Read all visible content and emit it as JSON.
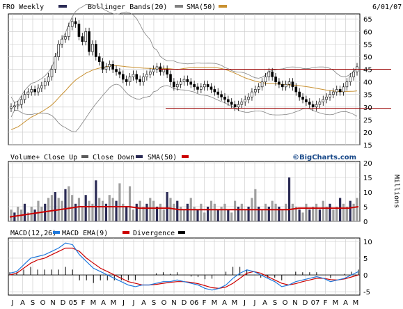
{
  "header": {
    "date": "6/01/07"
  },
  "price_legend": {
    "symbol": "FRO Weekly",
    "bb_label": "Bollinger Bands(20)",
    "sma_label": "SMA(50)"
  },
  "volume_legend": {
    "title": "Volume+",
    "close_up": "Close Up",
    "close_down": "Close Down",
    "sma_label": "SMA(50)",
    "watermark": "©BigCharts.com",
    "units": "Millions"
  },
  "macd_legend": {
    "title": "MACD(12,26)",
    "ema_label": "MACD EMA(9)",
    "div_label": "Divergence"
  },
  "colors": {
    "up": "#5a5a5a",
    "down": "#2b2b55",
    "bands": "#808080",
    "sma": "#c89030",
    "vol_sma": "#cc0000",
    "macd": "#1e78dc",
    "ema": "#cc0000",
    "div": "#000000",
    "grid": "#c8c8c8",
    "support": "#990000"
  },
  "chart_data": [
    {
      "type": "candlestick",
      "title": "FRO Weekly",
      "y_ticks": [
        15,
        20,
        25,
        30,
        35,
        40,
        45,
        50,
        55,
        60,
        65
      ],
      "ylim": [
        15,
        67
      ],
      "overlays": [
        "Bollinger Bands(20)",
        "SMA(50)"
      ],
      "horizontal_lines": [
        45,
        29.5
      ],
      "weekly_closes": [
        30,
        30.5,
        31,
        33,
        35,
        36,
        37,
        36,
        37.5,
        38.5,
        40,
        42,
        45,
        50,
        55,
        57,
        58,
        62,
        64,
        63,
        58,
        56,
        60,
        52,
        55,
        50,
        48,
        45,
        46,
        47,
        45,
        44,
        43,
        41,
        40,
        42,
        43,
        41,
        40,
        42,
        43,
        44,
        45,
        46,
        44,
        45,
        43,
        40,
        38,
        39,
        40,
        41,
        40,
        39,
        38,
        37,
        38,
        39,
        38,
        37,
        36,
        35,
        34,
        33,
        32,
        31,
        30,
        31,
        32,
        33,
        34,
        36,
        37,
        38,
        40,
        42,
        44,
        42,
        40,
        39,
        38,
        39,
        40,
        38,
        36,
        34,
        33,
        32,
        31,
        30,
        31,
        32,
        33,
        34,
        35,
        36,
        37,
        36,
        38,
        40,
        42,
        44,
        46
      ]
    },
    {
      "type": "bar",
      "title": "Volume+",
      "series": [
        {
          "name": "Close Up",
          "values": [
            4,
            3,
            5,
            4,
            6,
            3,
            5,
            4,
            7,
            5,
            6,
            8,
            9,
            10,
            8,
            7,
            11,
            12,
            9,
            6,
            8,
            5,
            9,
            7,
            6,
            14,
            8,
            7,
            6,
            9,
            8,
            7,
            13,
            6,
            5,
            12,
            4,
            6,
            7,
            5,
            6,
            8,
            7,
            5,
            6,
            4,
            10,
            8,
            6,
            7,
            5,
            4,
            6,
            8,
            5,
            4,
            6,
            3,
            5,
            7,
            6,
            4,
            5,
            6,
            4,
            3,
            7,
            5,
            6,
            4,
            5,
            8,
            11,
            5,
            4,
            6,
            5,
            7,
            6,
            5,
            4,
            6,
            15,
            6,
            5,
            4,
            3,
            6,
            4,
            5,
            6,
            4,
            7,
            5,
            6,
            4,
            5,
            8,
            6,
            5,
            7,
            6,
            8
          ]
        },
        {
          "name": "SMA(50)",
          "values": [
            1.5,
            2,
            2.5,
            3,
            3.5,
            4,
            4.5,
            5,
            5,
            5,
            5,
            5,
            5,
            4.5,
            4.5,
            4.5,
            4.5,
            4,
            4,
            4,
            4,
            4,
            4,
            4,
            4,
            4,
            4,
            4,
            4,
            4.5,
            4.5,
            4.5,
            4.5,
            4.5,
            4.5,
            5
          ]
        }
      ],
      "y_ticks": [
        0,
        5,
        10,
        15,
        20
      ],
      "ylim": [
        0,
        20
      ],
      "ylabel": "Millions"
    },
    {
      "type": "line",
      "title": "MACD(12,26)",
      "series": [
        {
          "name": "MACD(12,26)",
          "values": [
            0.5,
            1,
            3,
            5,
            5.5,
            6,
            7,
            8,
            9.5,
            9,
            6,
            4,
            2,
            1,
            0,
            -1,
            -2,
            -3,
            -3.5,
            -3,
            -3,
            -2.5,
            -2,
            -2,
            -1.5,
            -2,
            -2.5,
            -3,
            -4,
            -4.5,
            -4,
            -3,
            -1,
            0.5,
            1.5,
            1,
            0,
            -1,
            -2,
            -3.5,
            -3,
            -2,
            -1.5,
            -1,
            -0.5,
            -1,
            -2,
            -1.5,
            -1,
            0,
            1
          ]
        },
        {
          "name": "MACD EMA(9)",
          "values": [
            0,
            0.5,
            2,
            3.5,
            4.5,
            5,
            6,
            7,
            8,
            8,
            7,
            5,
            3.5,
            2,
            1,
            0,
            -1,
            -2,
            -2.5,
            -3,
            -3,
            -2.8,
            -2.5,
            -2.2,
            -2,
            -2,
            -2.2,
            -2.6,
            -3.2,
            -3.8,
            -4,
            -3.6,
            -2.5,
            -1,
            0.5,
            1,
            0.5,
            -0.5,
            -1.5,
            -2.5,
            -3,
            -2.6,
            -2,
            -1.5,
            -1,
            -1,
            -1.4,
            -1.5,
            -1.2,
            -0.6,
            0
          ]
        }
      ],
      "y_ticks": [
        -5,
        0,
        5,
        10
      ],
      "ylim": [
        -6,
        11
      ]
    }
  ],
  "x_labels": [
    "J",
    "A",
    "S",
    "O",
    "N",
    "D",
    "05",
    "F",
    "M",
    "A",
    "M",
    "J",
    "J",
    "A",
    "S",
    "O",
    "N",
    "D",
    "06",
    "F",
    "M",
    "A",
    "M",
    "J",
    "J",
    "A",
    "S",
    "O",
    "N",
    "D",
    "07",
    "F",
    "M",
    "A",
    "M"
  ]
}
